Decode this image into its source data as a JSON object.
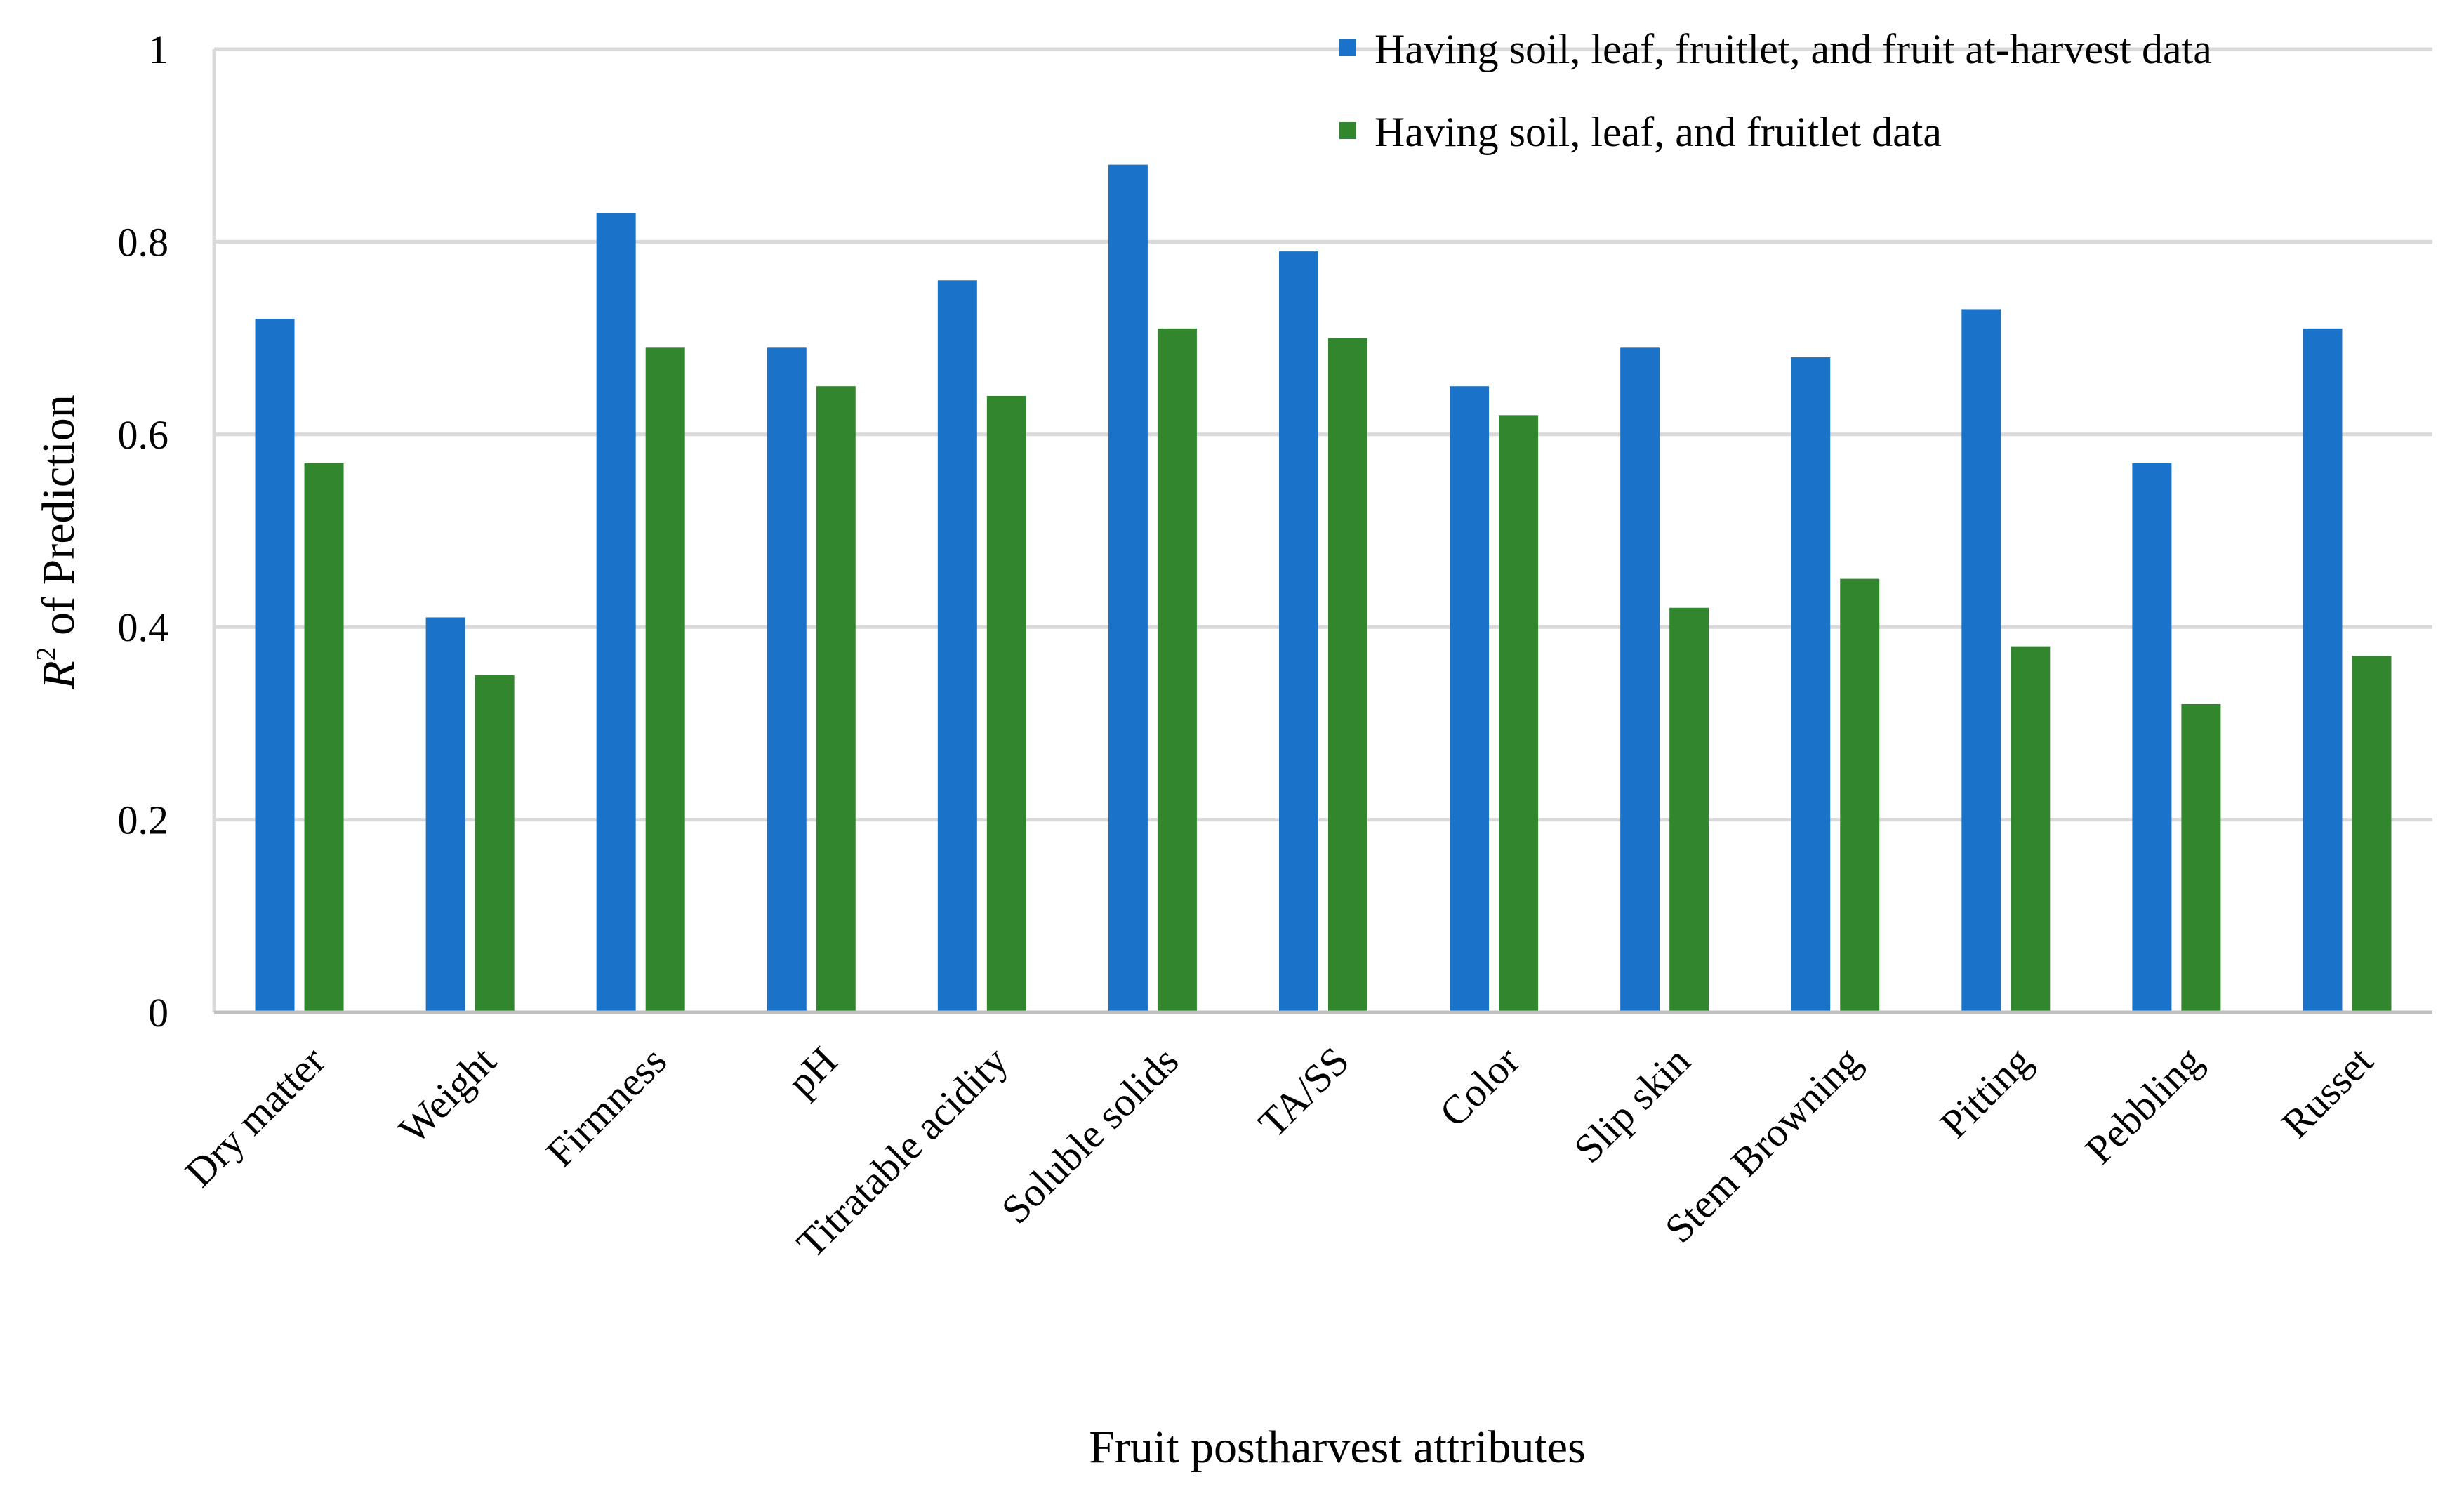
{
  "chart_data": {
    "type": "bar",
    "title": "",
    "xlabel": "Fruit postharvest attributes",
    "ylabel": {
      "base": "R",
      "superscript": "2",
      "rest": " of Prediction"
    },
    "ylim": [
      0,
      1
    ],
    "yticks": [
      0,
      0.2,
      0.4,
      0.6,
      0.8,
      1
    ],
    "ytick_labels": [
      "0",
      "0.2",
      "0.4",
      "0.6",
      "0.8",
      "1"
    ],
    "grid": true,
    "legend_position": "top-right",
    "categories": [
      "Dry matter",
      "Weight",
      "Firmness",
      "pH",
      "Titratable acidity",
      "Soluble solids",
      "TA/SS",
      "Color",
      "Slip skin",
      "Stem Browning",
      "Pitting",
      "Pebbling",
      "Russet"
    ],
    "series": [
      {
        "name": "Having soil, leaf, fruitlet, and fruit at-harvest data",
        "color": "#1b73c9",
        "values": [
          0.72,
          0.41,
          0.83,
          0.69,
          0.76,
          0.88,
          0.79,
          0.65,
          0.69,
          0.68,
          0.73,
          0.57,
          0.71
        ]
      },
      {
        "name": "Having soil, leaf, and fruitlet data",
        "color": "#31862e",
        "values": [
          0.57,
          0.35,
          0.69,
          0.65,
          0.64,
          0.71,
          0.7,
          0.62,
          0.42,
          0.45,
          0.38,
          0.32,
          0.37
        ]
      }
    ],
    "colors": {
      "grid": "#d9d9d9",
      "axis": "#bfbfbf",
      "text": "#000000"
    }
  }
}
